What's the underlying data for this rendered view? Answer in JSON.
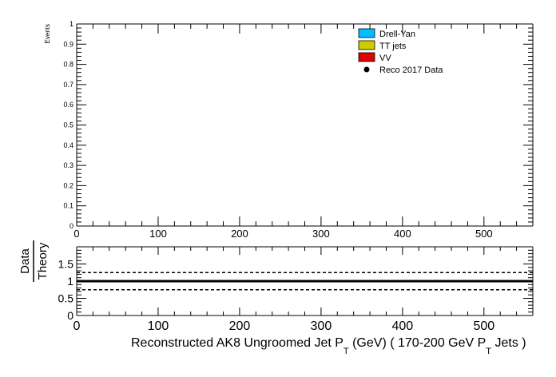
{
  "chart_data": [
    {
      "panel": "main",
      "type": "bar",
      "ylabel": "Events",
      "xlim": [
        0,
        560
      ],
      "ylim": [
        0,
        1
      ],
      "x_ticks": [
        0,
        100,
        200,
        300,
        400,
        500
      ],
      "y_ticks": [
        0,
        0.1,
        0.2,
        0.3,
        0.4,
        0.5,
        0.6,
        0.7,
        0.8,
        0.9,
        1
      ],
      "grid": false,
      "legend_position": "top-right",
      "series": [
        {
          "name": "Drell-Yan",
          "color": "#00bfff",
          "values": []
        },
        {
          "name": "TT jets",
          "color": "#cccc00",
          "values": []
        },
        {
          "name": "VV",
          "color": "#e00000",
          "values": []
        },
        {
          "name": "Reco 2017 Data",
          "color": "#000000",
          "marker": "point",
          "values": []
        }
      ]
    },
    {
      "panel": "ratio",
      "type": "line",
      "ylabel_numerator": "Data",
      "ylabel_denominator": "Theory",
      "xlabel": "Reconstructed AK8 Ungroomed Jet P",
      "xlabel_sub": "T",
      "xlabel_mid": " (GeV) ( 170-200 GeV P",
      "xlabel_sub2": "T",
      "xlabel_end": " Jets  )",
      "xlim": [
        0,
        560
      ],
      "ylim": [
        0,
        2
      ],
      "x_ticks": [
        0,
        100,
        200,
        300,
        400,
        500
      ],
      "y_ticks": [
        0,
        0.5,
        1,
        1.5
      ],
      "lines": [
        {
          "y": 1.0,
          "style": "solid"
        },
        {
          "y": 1.25,
          "style": "dashed"
        },
        {
          "y": 0.75,
          "style": "dashed"
        }
      ]
    }
  ]
}
